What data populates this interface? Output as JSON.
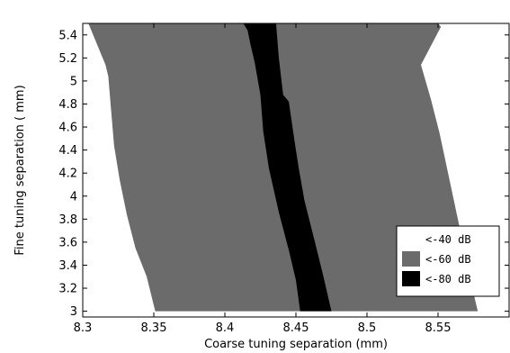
{
  "chart_data": {
    "type": "area",
    "xlabel": "Coarse tuning separation (mm)",
    "ylabel": "Fine tuning separation ( mm)",
    "xlim": [
      8.3,
      8.6
    ],
    "ylim": [
      2.95,
      5.5
    ],
    "xticks": [
      8.3,
      8.35,
      8.4,
      8.45,
      8.5,
      8.55
    ],
    "xtick_labels": [
      "8.3",
      "8.35",
      "8.4",
      "8.45",
      "8.5",
      "8.55"
    ],
    "yticks": [
      3,
      3.2,
      3.4,
      3.6,
      3.8,
      4,
      4.2,
      4.4,
      4.6,
      4.8,
      5,
      5.2,
      5.4
    ],
    "ytick_labels": [
      "3",
      "3.2",
      "3.4",
      "3.6",
      "3.8",
      "4",
      "4.2",
      "4.4",
      "4.6",
      "4.8",
      "5",
      "5.2",
      "5.4"
    ],
    "grid": false,
    "legend_position": "bottom-right",
    "series": [
      {
        "name": "<-40 dB",
        "color": "#ffffff",
        "polygon": [
          [
            8.3,
            2.95
          ],
          [
            8.6,
            2.95
          ],
          [
            8.6,
            5.5
          ],
          [
            8.3,
            5.5
          ]
        ]
      },
      {
        "name": "<-60 dB",
        "color": "#6b6b6b",
        "polygon": [
          [
            8.304,
            5.5
          ],
          [
            8.55,
            5.5
          ],
          [
            8.552,
            5.47
          ],
          [
            8.538,
            5.14
          ],
          [
            8.545,
            4.84
          ],
          [
            8.551,
            4.55
          ],
          [
            8.556,
            4.26
          ],
          [
            8.561,
            3.97
          ],
          [
            8.566,
            3.68
          ],
          [
            8.571,
            3.39
          ],
          [
            8.576,
            3.1
          ],
          [
            8.578,
            3.0
          ],
          [
            8.351,
            3.0
          ],
          [
            8.345,
            3.3
          ],
          [
            8.337,
            3.55
          ],
          [
            8.331,
            3.84
          ],
          [
            8.326,
            4.14
          ],
          [
            8.322,
            4.44
          ],
          [
            8.32,
            4.74
          ],
          [
            8.318,
            5.04
          ],
          [
            8.316,
            5.14
          ]
        ]
      },
      {
        "name": "<-80 dB",
        "color": "#000000",
        "polygon": [
          [
            8.413,
            5.5
          ],
          [
            8.436,
            5.5
          ],
          [
            8.438,
            5.2
          ],
          [
            8.441,
            4.88
          ],
          [
            8.445,
            4.82
          ],
          [
            8.449,
            4.48
          ],
          [
            8.452,
            4.24
          ],
          [
            8.456,
            3.96
          ],
          [
            8.463,
            3.62
          ],
          [
            8.469,
            3.32
          ],
          [
            8.475,
            3.0
          ],
          [
            8.453,
            3.0
          ],
          [
            8.45,
            3.27
          ],
          [
            8.445,
            3.53
          ],
          [
            8.438,
            3.86
          ],
          [
            8.431,
            4.24
          ],
          [
            8.427,
            4.56
          ],
          [
            8.425,
            4.88
          ],
          [
            8.421,
            5.16
          ],
          [
            8.418,
            5.32
          ],
          [
            8.416,
            5.44
          ]
        ]
      }
    ]
  }
}
